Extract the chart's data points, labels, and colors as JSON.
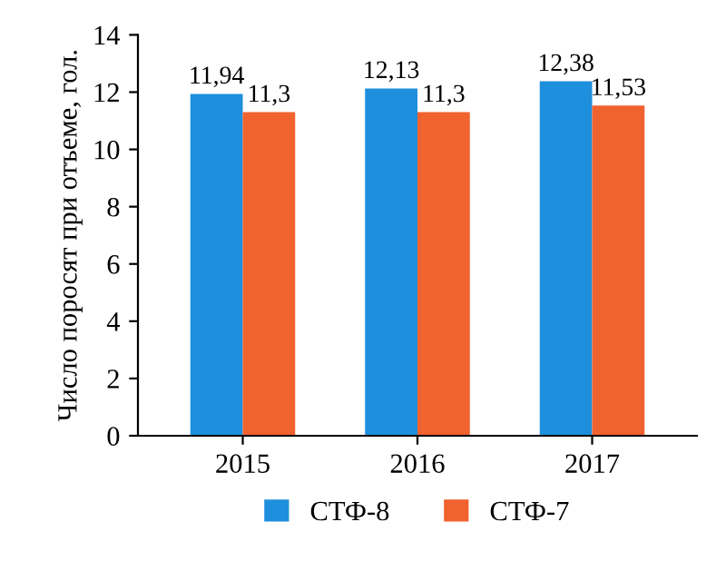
{
  "chart_data": {
    "type": "bar",
    "ylabel": "Число поросят при отъеме, гол.",
    "categories": [
      "2015",
      "2016",
      "2017"
    ],
    "series": [
      {
        "name": "СТФ-8",
        "color": "#1e8fdc",
        "values": [
          11.94,
          12.13,
          12.38
        ],
        "value_labels": [
          "11,94",
          "12,13",
          "12,38"
        ]
      },
      {
        "name": "СТФ-7",
        "color": "#f0622e",
        "values": [
          11.3,
          11.3,
          11.53
        ],
        "value_labels": [
          "11,3",
          "11,3",
          "11,53"
        ]
      }
    ],
    "ylim": [
      0,
      14
    ],
    "yticks": [
      0,
      2,
      4,
      6,
      8,
      10,
      12,
      14
    ],
    "grid": false,
    "legend": "bottom"
  }
}
